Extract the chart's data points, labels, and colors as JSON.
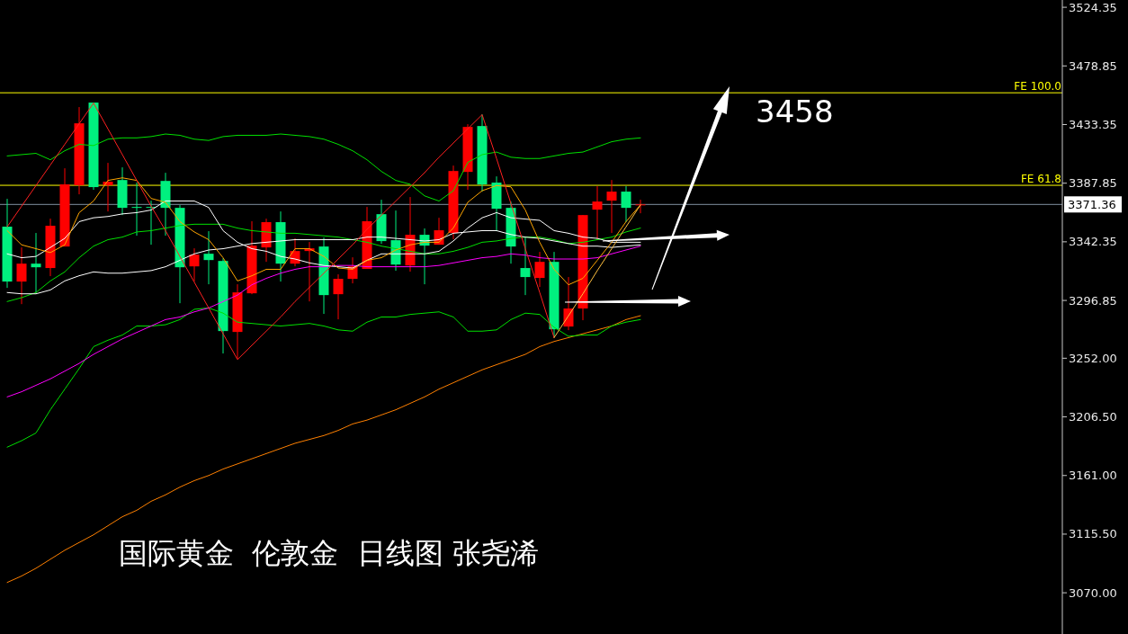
{
  "chart_data": {
    "type": "candlestick",
    "title": "国际黄金  伦敦金  日线图 张尧浠",
    "annotations": [
      "3458"
    ],
    "categories": [
      null,
      null,
      null,
      null,
      null,
      null,
      null,
      null,
      null,
      null,
      null,
      null,
      null,
      null,
      null,
      null,
      null,
      null,
      null,
      null,
      null,
      null,
      null,
      null,
      null,
      null,
      null,
      null,
      null,
      null,
      null,
      null,
      null,
      null,
      null,
      null,
      null,
      null,
      null,
      null,
      null,
      null,
      null,
      null,
      null
    ],
    "ohlc": [
      [
        3354.1,
        3375.7,
        3306.6,
        3311.5
      ],
      [
        3311.5,
        3338.0,
        3294.0,
        3325.4
      ],
      [
        3325.4,
        3349.2,
        3302.4,
        3322.6
      ],
      [
        3322.0,
        3360.3,
        3315.7,
        3354.8
      ],
      [
        3338.7,
        3399.4,
        3338.7,
        3386.9
      ],
      [
        3386.2,
        3446.9,
        3379.2,
        3434.3
      ],
      [
        3450.4,
        3450.4,
        3382.7,
        3384.8
      ],
      [
        3386.2,
        3403.6,
        3365.9,
        3389.0
      ],
      [
        3390.3,
        3400.1,
        3363.1,
        3368.7
      ],
      [
        3369.4,
        3388.3,
        3347.1,
        3369.4
      ],
      [
        3369.4,
        3374.3,
        3340.1,
        3369.4
      ],
      [
        3389.6,
        3395.9,
        3347.1,
        3368.7
      ],
      [
        3368.7,
        3370.8,
        3294.7,
        3322.6
      ],
      [
        3323.3,
        3337.3,
        3311.5,
        3332.4
      ],
      [
        3333.1,
        3350.6,
        3309.4,
        3328.2
      ],
      [
        3327.5,
        3329.6,
        3255.7,
        3273.1
      ],
      [
        3272.4,
        3309.4,
        3251.5,
        3303.1
      ],
      [
        3302.4,
        3358.3,
        3301.7,
        3339.4
      ],
      [
        3338.0,
        3360.3,
        3326.8,
        3357.6
      ],
      [
        3357.6,
        3365.9,
        3311.5,
        3325.4
      ],
      [
        3325.4,
        3345.0,
        3323.3,
        3335.2
      ],
      [
        3335.2,
        3342.2,
        3296.1,
        3337.3
      ],
      [
        3338.7,
        3345.7,
        3286.4,
        3301.0
      ],
      [
        3301.7,
        3317.1,
        3282.2,
        3313.6
      ],
      [
        3313.6,
        3330.3,
        3310.1,
        3323.3
      ],
      [
        3321.3,
        3369.4,
        3321.3,
        3358.3
      ],
      [
        3363.8,
        3375.0,
        3340.8,
        3342.9
      ],
      [
        3343.6,
        3366.6,
        3319.9,
        3324.7
      ],
      [
        3324.0,
        3377.1,
        3319.2,
        3347.8
      ],
      [
        3347.8,
        3352.7,
        3309.4,
        3339.4
      ],
      [
        3340.1,
        3361.0,
        3340.1,
        3351.3
      ],
      [
        3349.2,
        3401.5,
        3344.3,
        3397.3
      ],
      [
        3396.6,
        3433.6,
        3382.7,
        3431.5
      ],
      [
        3432.2,
        3441.3,
        3381.3,
        3386.9
      ],
      [
        3388.3,
        3393.1,
        3350.6,
        3368.0
      ],
      [
        3368.7,
        3373.6,
        3325.4,
        3338.7
      ],
      [
        3322.0,
        3345.7,
        3301.0,
        3315.0
      ],
      [
        3314.3,
        3334.5,
        3307.3,
        3326.8
      ],
      [
        3326.8,
        3334.5,
        3268.2,
        3274.5
      ],
      [
        3276.6,
        3315.0,
        3273.8,
        3290.6
      ],
      [
        3290.6,
        3363.1,
        3281.5,
        3363.1
      ],
      [
        3367.3,
        3385.5,
        3344.3,
        3373.6
      ],
      [
        3374.3,
        3390.3,
        3349.2,
        3381.3
      ],
      [
        3381.3,
        3385.5,
        3357.6,
        3368.7
      ],
      [
        3370.8,
        3375.0,
        3364.5,
        3371.36
      ]
    ],
    "colors": [
      "#00f07f",
      "#ff0000",
      "#00f07f",
      "#ff0000",
      "#ff0000",
      "#ff0000",
      "#00f07f",
      "#ff0000",
      "#00f07f",
      "#00f07f",
      "#00f07f",
      "#00f07f",
      "#00f07f",
      "#ff0000",
      "#00f07f",
      "#00f07f",
      "#ff0000",
      "#ff0000",
      "#ff0000",
      "#00f07f",
      "#ff0000",
      "#ff0000",
      "#00f07f",
      "#ff0000",
      "#ff0000",
      "#ff0000",
      "#00f07f",
      "#00f07f",
      "#ff0000",
      "#00f07f",
      "#ff0000",
      "#ff0000",
      "#ff0000",
      "#00f07f",
      "#00f07f",
      "#00f07f",
      "#00f07f",
      "#ff0000",
      "#00f07f",
      "#ff0000",
      "#ff0000",
      "#ff0000",
      "#ff0000",
      "#00f07f",
      "#ff0000"
    ],
    "series": [
      {
        "type": "line",
        "color": "#ff8000",
        "values": [
          3078,
          3083,
          3089,
          3096,
          3103,
          3109,
          3115,
          3122,
          3129,
          3134,
          3141,
          3146,
          3152,
          3157,
          3161,
          3166,
          3170,
          3174,
          3178,
          3182,
          3186,
          3189,
          3192,
          3196,
          3201,
          3204,
          3208,
          3212,
          3217,
          3222,
          3228,
          3233,
          3238,
          3243,
          3247,
          3251,
          3255,
          3261,
          3265,
          3268,
          3271,
          3274,
          3277,
          3282,
          3285
        ]
      },
      {
        "type": "line",
        "color": "#00e000",
        "values": [
          3409,
          3410,
          3411,
          3406,
          3413,
          3418,
          3417,
          3422,
          3423,
          3423,
          3424,
          3426,
          3425,
          3422,
          3421,
          3424,
          3425,
          3425,
          3425,
          3426,
          3425,
          3424,
          3422,
          3418,
          3413,
          3406,
          3397,
          3390,
          3387,
          3378,
          3374,
          3382,
          3404,
          3410,
          3412,
          3408,
          3407,
          3407,
          3409,
          3411,
          3412,
          3416,
          3420,
          3422,
          3423
        ]
      },
      {
        "type": "line",
        "color": "#00e000",
        "values": [
          3183,
          3188,
          3194,
          3212,
          3228,
          3244,
          3261,
          3266,
          3270,
          3277,
          3277,
          3278,
          3282,
          3290,
          3291,
          3287,
          3280,
          3279,
          3278,
          3277,
          3278,
          3279,
          3277,
          3274,
          3273,
          3280,
          3284,
          3284,
          3286,
          3287,
          3288,
          3284,
          3273,
          3273,
          3274,
          3282,
          3287,
          3286,
          3276,
          3269,
          3270,
          3270,
          3277,
          3280,
          3282
        ]
      },
      {
        "type": "line",
        "color": "#00e000",
        "values": [
          3296,
          3299,
          3303,
          3312,
          3319,
          3330,
          3339,
          3344,
          3346,
          3350,
          3351,
          3353,
          3355,
          3356,
          3356,
          3356,
          3353,
          3351,
          3350,
          3349,
          3349,
          3348,
          3347,
          3346,
          3344,
          3342,
          3339,
          3337,
          3335,
          3333,
          3333,
          3335,
          3338,
          3342,
          3343,
          3345,
          3346,
          3346,
          3344,
          3341,
          3342,
          3344,
          3346,
          3350,
          3353
        ]
      },
      {
        "type": "line",
        "color": "#ff00ff",
        "values": [
          3222,
          3226,
          3231,
          3236,
          3242,
          3248,
          3255,
          3261,
          3267,
          3272,
          3277,
          3282,
          3284,
          3288,
          3291,
          3296,
          3301,
          3309,
          3314,
          3318,
          3321,
          3323,
          3323,
          3324,
          3324,
          3323,
          3323,
          3323,
          3323,
          3323,
          3324,
          3326,
          3328,
          3330,
          3331,
          3333,
          3332,
          3330,
          3329,
          3329,
          3329,
          3330,
          3333,
          3336,
          3339
        ]
      },
      {
        "type": "line",
        "color": "#ffffff",
        "values": [
          3303,
          3302,
          3302,
          3305,
          3312,
          3316,
          3319,
          3318,
          3318,
          3319,
          3320,
          3323,
          3328,
          3333,
          3336,
          3337,
          3339,
          3341,
          3342,
          3343,
          3344,
          3344,
          3344,
          3344,
          3344,
          3346,
          3346,
          3345,
          3344,
          3343,
          3344,
          3349,
          3350,
          3351,
          3351,
          3348,
          3346,
          3345,
          3343,
          3341,
          3339,
          3339,
          3338,
          3339,
          3340
        ]
      },
      {
        "type": "line",
        "color": "#ffffff",
        "values": [
          3333,
          3330,
          3331,
          3338,
          3345,
          3358,
          3361,
          3362,
          3364,
          3365,
          3367,
          3374,
          3374,
          3374,
          3369,
          3351,
          3342,
          3337,
          3335,
          3331,
          3329,
          3326,
          3324,
          3323,
          3322,
          3328,
          3333,
          3333,
          3333,
          3333,
          3335,
          3343,
          3353,
          3361,
          3365,
          3361,
          3360,
          3359,
          3351,
          3349,
          3346,
          3345,
          3342,
          3342,
          3342
        ]
      },
      {
        "type": "line",
        "color": "#ffa500",
        "values": [
          3351,
          3340,
          3337,
          3334,
          3340,
          3365,
          3374,
          3390,
          3392,
          3390,
          3376,
          3373,
          3358,
          3350,
          3344,
          3330,
          3312,
          3316,
          3321,
          3321,
          3337,
          3337,
          3331,
          3322,
          3321,
          3328,
          3330,
          3336,
          3340,
          3342,
          3342,
          3353,
          3373,
          3382,
          3386,
          3385,
          3367,
          3342,
          3321,
          3309,
          3314,
          3328,
          3342,
          3358,
          3371
        ]
      },
      {
        "type": "line",
        "color": "#ff2020",
        "values": [
          3354,
          3370,
          3386,
          3402,
          3418,
          3434,
          3450,
          3430,
          3410,
          3390,
          3370,
          3351,
          3331,
          3311,
          3291,
          3271,
          3251,
          3262,
          3273,
          3284,
          3296,
          3307,
          3318,
          3329,
          3340,
          3352,
          3363,
          3374,
          3385,
          3396,
          3408,
          3419,
          3430,
          3441,
          3407,
          3372,
          3337,
          3303,
          3268,
          null,
          null,
          null,
          null,
          null,
          null
        ]
      },
      {
        "type": "line",
        "color": "#ffc040",
        "values": [
          null,
          null,
          null,
          null,
          null,
          null,
          null,
          null,
          null,
          null,
          null,
          null,
          null,
          null,
          null,
          null,
          null,
          null,
          null,
          null,
          null,
          null,
          null,
          null,
          null,
          null,
          null,
          null,
          null,
          null,
          null,
          null,
          null,
          null,
          null,
          null,
          null,
          null,
          3268,
          3285,
          3302,
          3320,
          3337,
          3354,
          3371
        ]
      }
    ],
    "ylim": [
      3038,
      3530
    ],
    "yticks": [
      {
        "value": 3524.35,
        "label": "3524.35"
      },
      {
        "value": 3478.85,
        "label": "3478.85"
      },
      {
        "value": 3433.35,
        "label": "3433.35"
      },
      {
        "value": 3387.85,
        "label": "3387.85"
      },
      {
        "value": 3342.35,
        "label": "3342.35"
      },
      {
        "value": 3296.85,
        "label": "3296.85"
      },
      {
        "value": 3252,
        "label": "3252.00"
      },
      {
        "value": 3206.5,
        "label": "3206.50"
      },
      {
        "value": 3161,
        "label": "3161.00"
      },
      {
        "value": 3115.5,
        "label": "3115.50"
      },
      {
        "value": 3070,
        "label": "3070.00"
      }
    ],
    "tick_labels": "y",
    "ref_lines": [
      {
        "axis": "y",
        "value": 3458,
        "label": "FE 100.0",
        "color": "#ffff00"
      },
      {
        "axis": "y",
        "value": 3386.2,
        "label": "FE 61.8",
        "color": "#ffff00"
      },
      {
        "axis": "y",
        "value": 3371.36,
        "label": "3371.36",
        "color": "#8090a0"
      }
    ]
  }
}
